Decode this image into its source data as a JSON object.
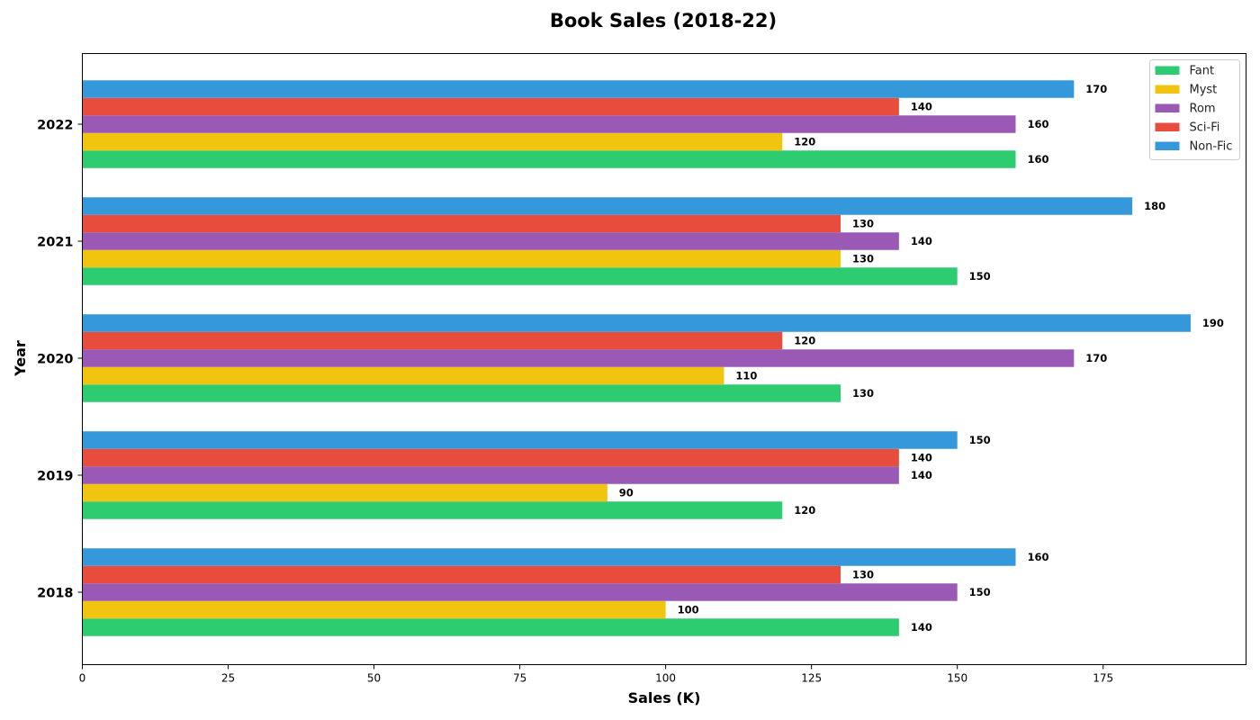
{
  "chart_data": {
    "type": "bar",
    "orientation": "horizontal",
    "title": "Book Sales (2018-22)",
    "xlabel": "Sales (K)",
    "ylabel": "Year",
    "categories": [
      "2018",
      "2019",
      "2020",
      "2021",
      "2022"
    ],
    "xlim": [
      0,
      199.5
    ],
    "x_ticks": [
      0,
      25,
      50,
      75,
      100,
      125,
      150,
      175
    ],
    "grid": false,
    "legend_position": "top-right",
    "series": [
      {
        "name": "Fant",
        "color": "#2ecc71",
        "values": [
          140,
          120,
          130,
          150,
          160
        ]
      },
      {
        "name": "Myst",
        "color": "#f1c40f",
        "values": [
          100,
          90,
          110,
          130,
          120
        ]
      },
      {
        "name": "Rom",
        "color": "#9b59b6",
        "values": [
          150,
          140,
          170,
          140,
          160
        ]
      },
      {
        "name": "Sci-Fi",
        "color": "#e74c3c",
        "values": [
          130,
          140,
          120,
          130,
          140
        ]
      },
      {
        "name": "Non-Fic",
        "color": "#3498db",
        "values": [
          160,
          150,
          190,
          180,
          170
        ]
      }
    ]
  }
}
